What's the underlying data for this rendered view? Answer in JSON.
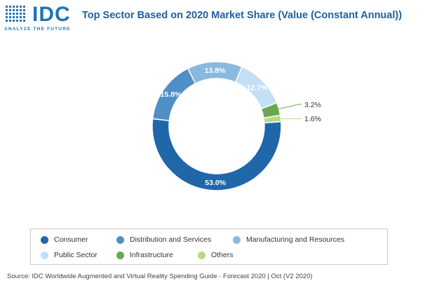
{
  "logo": {
    "word": "IDC",
    "tagline": "ANALYZE THE FUTURE"
  },
  "chart_data": {
    "type": "pie",
    "title": "Top Sector Based on 2020 Market Share (Value (Constant Annual))",
    "categories": [
      "Consumer",
      "Distribution and Services",
      "Manufacturing and Resources",
      "Public Sector",
      "Infrastructure",
      "Others"
    ],
    "values": [
      53.0,
      15.8,
      13.8,
      12.7,
      3.2,
      1.6
    ],
    "labels": [
      "53.0%",
      "15.8%",
      "13.8%",
      "12.7%",
      "3.2%",
      "1.6%"
    ],
    "colors": [
      "#1f67a8",
      "#4f8fc6",
      "#8ab9e0",
      "#c3dff5",
      "#6aa84f",
      "#b6d98a"
    ],
    "label_colors": [
      "#ffffff",
      "#ffffff",
      "#ffffff",
      "#ffffff",
      "#333333",
      "#333333"
    ],
    "donut": true,
    "legend_position": "bottom"
  },
  "source": "Source: IDC Worldwide Augmented and Virtual Reality Spending Guide - Forecast 2020 | Oct (V2 2020)"
}
